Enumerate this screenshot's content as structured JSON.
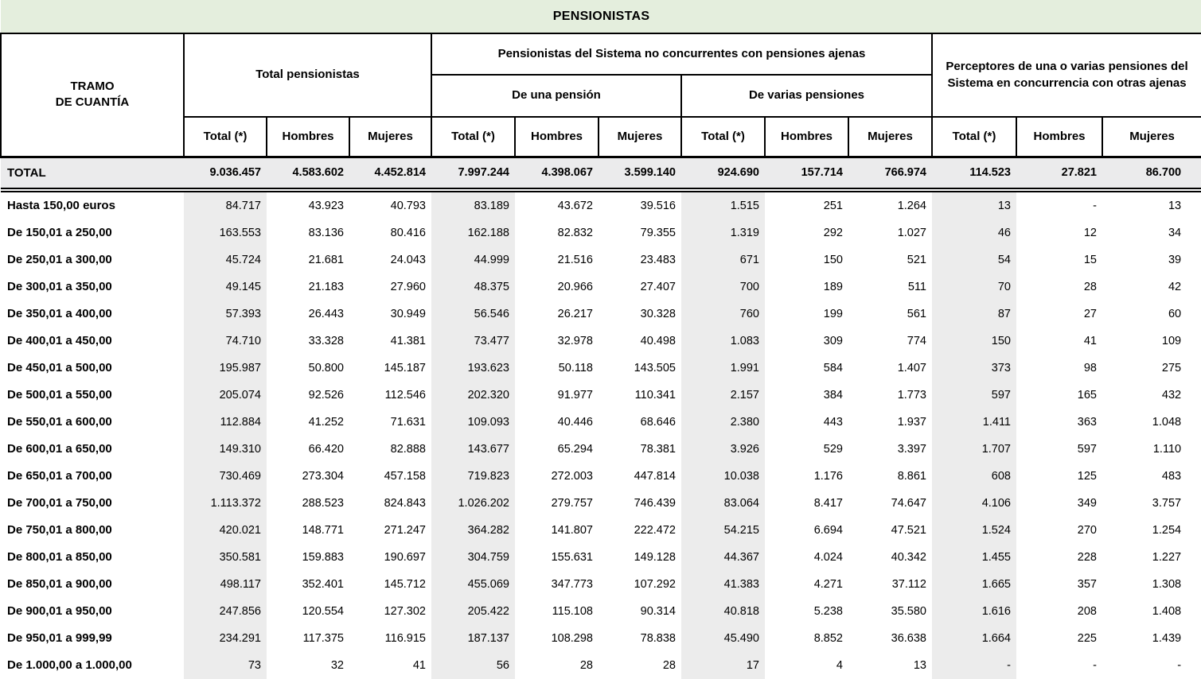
{
  "title": "PENSIONISTAS",
  "header": {
    "row_label": "TRAMO\nDE CUANTÍA",
    "group_total": "Total pensionistas",
    "group_no_concurrentes": "Pensionistas del Sistema no concurrentes con pensiones ajenas",
    "sub_una": "De una pensión",
    "sub_varias": "De varias pensiones",
    "group_perceptores": "Perceptores de una o varias pensiones del Sistema en concurrencia con otras ajenas",
    "col_total": "Total (*)",
    "col_hombres": "Hombres",
    "col_mujeres": "Mujeres"
  },
  "colors": {
    "title_bg": "#e4eedd",
    "shade_bg": "#ececec",
    "total_row_bg": "#ebebec",
    "border": "#000000"
  },
  "table": {
    "total_row": {
      "label": "TOTAL",
      "values": [
        "9.036.457",
        "4.583.602",
        "4.452.814",
        "7.997.244",
        "4.398.067",
        "3.599.140",
        "924.690",
        "157.714",
        "766.974",
        "114.523",
        "27.821",
        "86.700"
      ]
    },
    "rows": [
      {
        "label": "Hasta 150,00 euros",
        "values": [
          "84.717",
          "43.923",
          "40.793",
          "83.189",
          "43.672",
          "39.516",
          "1.515",
          "251",
          "1.264",
          "13",
          "-",
          "13"
        ]
      },
      {
        "label": "De 150,01 a 250,00",
        "values": [
          "163.553",
          "83.136",
          "80.416",
          "162.188",
          "82.832",
          "79.355",
          "1.319",
          "292",
          "1.027",
          "46",
          "12",
          "34"
        ]
      },
      {
        "label": "De 250,01 a 300,00",
        "values": [
          "45.724",
          "21.681",
          "24.043",
          "44.999",
          "21.516",
          "23.483",
          "671",
          "150",
          "521",
          "54",
          "15",
          "39"
        ]
      },
      {
        "label": "De 300,01 a 350,00",
        "values": [
          "49.145",
          "21.183",
          "27.960",
          "48.375",
          "20.966",
          "27.407",
          "700",
          "189",
          "511",
          "70",
          "28",
          "42"
        ]
      },
      {
        "label": "De 350,01 a 400,00",
        "values": [
          "57.393",
          "26.443",
          "30.949",
          "56.546",
          "26.217",
          "30.328",
          "760",
          "199",
          "561",
          "87",
          "27",
          "60"
        ]
      },
      {
        "label": "De 400,01 a 450,00",
        "values": [
          "74.710",
          "33.328",
          "41.381",
          "73.477",
          "32.978",
          "40.498",
          "1.083",
          "309",
          "774",
          "150",
          "41",
          "109"
        ]
      },
      {
        "label": "De 450,01 a 500,00",
        "values": [
          "195.987",
          "50.800",
          "145.187",
          "193.623",
          "50.118",
          "143.505",
          "1.991",
          "584",
          "1.407",
          "373",
          "98",
          "275"
        ]
      },
      {
        "label": "De 500,01 a 550,00",
        "values": [
          "205.074",
          "92.526",
          "112.546",
          "202.320",
          "91.977",
          "110.341",
          "2.157",
          "384",
          "1.773",
          "597",
          "165",
          "432"
        ]
      },
      {
        "label": "De 550,01 a 600,00",
        "values": [
          "112.884",
          "41.252",
          "71.631",
          "109.093",
          "40.446",
          "68.646",
          "2.380",
          "443",
          "1.937",
          "1.411",
          "363",
          "1.048"
        ]
      },
      {
        "label": "De 600,01 a 650,00",
        "values": [
          "149.310",
          "66.420",
          "82.888",
          "143.677",
          "65.294",
          "78.381",
          "3.926",
          "529",
          "3.397",
          "1.707",
          "597",
          "1.110"
        ]
      },
      {
        "label": "De 650,01 a 700,00",
        "values": [
          "730.469",
          "273.304",
          "457.158",
          "719.823",
          "272.003",
          "447.814",
          "10.038",
          "1.176",
          "8.861",
          "608",
          "125",
          "483"
        ]
      },
      {
        "label": "De 700,01 a 750,00",
        "values": [
          "1.113.372",
          "288.523",
          "824.843",
          "1.026.202",
          "279.757",
          "746.439",
          "83.064",
          "8.417",
          "74.647",
          "4.106",
          "349",
          "3.757"
        ]
      },
      {
        "label": "De 750,01 a 800,00",
        "values": [
          "420.021",
          "148.771",
          "271.247",
          "364.282",
          "141.807",
          "222.472",
          "54.215",
          "6.694",
          "47.521",
          "1.524",
          "270",
          "1.254"
        ]
      },
      {
        "label": "De 800,01 a 850,00",
        "values": [
          "350.581",
          "159.883",
          "190.697",
          "304.759",
          "155.631",
          "149.128",
          "44.367",
          "4.024",
          "40.342",
          "1.455",
          "228",
          "1.227"
        ]
      },
      {
        "label": "De 850,01 a 900,00",
        "values": [
          "498.117",
          "352.401",
          "145.712",
          "455.069",
          "347.773",
          "107.292",
          "41.383",
          "4.271",
          "37.112",
          "1.665",
          "357",
          "1.308"
        ]
      },
      {
        "label": "De 900,01 a 950,00",
        "values": [
          "247.856",
          "120.554",
          "127.302",
          "205.422",
          "115.108",
          "90.314",
          "40.818",
          "5.238",
          "35.580",
          "1.616",
          "208",
          "1.408"
        ]
      },
      {
        "label": "De 950,01 a 999,99",
        "values": [
          "234.291",
          "117.375",
          "116.915",
          "187.137",
          "108.298",
          "78.838",
          "45.490",
          "8.852",
          "36.638",
          "1.664",
          "225",
          "1.439"
        ]
      },
      {
        "label": "De 1.000,00 a 1.000,00",
        "values": [
          "73",
          "32",
          "41",
          "56",
          "28",
          "28",
          "17",
          "4",
          "13",
          "-",
          "-",
          "-"
        ]
      }
    ]
  }
}
